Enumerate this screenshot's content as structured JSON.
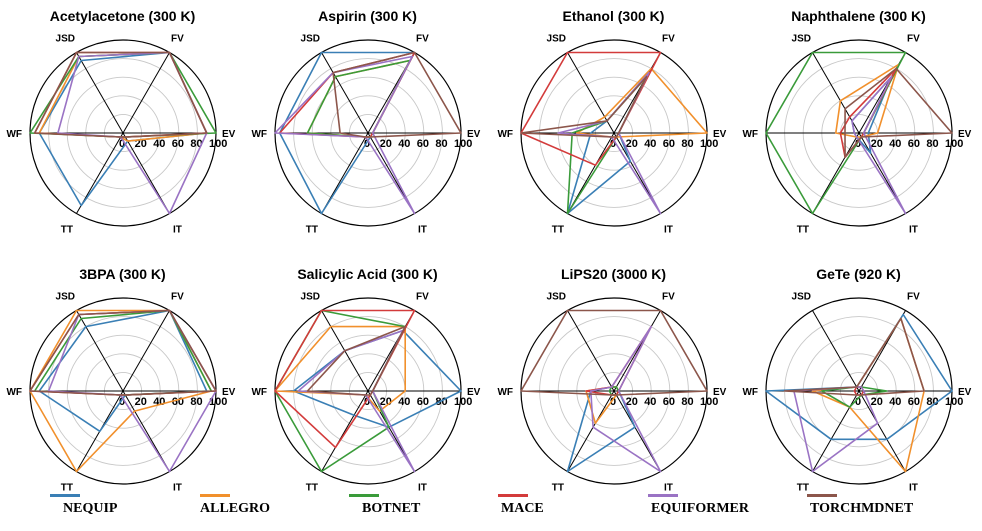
{
  "axes": [
    "EV",
    "IT",
    "TT",
    "WF",
    "JSD",
    "FV"
  ],
  "rticks": [
    "0",
    "20",
    "40",
    "60",
    "80",
    "100"
  ],
  "colors": {
    "NEQUIP": "#3a7fb5",
    "ALLEGRO": "#f1902c",
    "BOTNET": "#3a9b3a",
    "MACE": "#d33b3b",
    "EQUIFORMER": "#9a73c4",
    "TORCHMDNET": "#8c564b"
  },
  "legend": [
    {
      "name": "NEQUIP",
      "color": "#3a7fb5"
    },
    {
      "name": "ALLEGRO",
      "color": "#f1902c"
    },
    {
      "name": "BOTNET",
      "color": "#3a9b3a"
    },
    {
      "name": "MACE",
      "color": "#d33b3b"
    },
    {
      "name": "EQUIFORMER",
      "color": "#9a73c4"
    },
    {
      "name": "TORCHMDNET",
      "color": "#8c564b"
    }
  ],
  "chart_data": [
    {
      "type": "radar",
      "title": "Acetylacetone (300 K)",
      "axes": [
        "EV",
        "IT",
        "TT",
        "WF",
        "JSD",
        "FV"
      ],
      "rlim": [
        0,
        100
      ],
      "series": [
        {
          "name": "NEQUIP",
          "values": [
            90,
            10,
            90,
            90,
            90,
            100
          ]
        },
        {
          "name": "ALLEGRO",
          "values": [
            90,
            10,
            5,
            90,
            95,
            100
          ]
        },
        {
          "name": "BOTNET",
          "values": [
            100,
            5,
            5,
            100,
            95,
            100
          ]
        },
        {
          "name": "MACE",
          "values": [
            90,
            5,
            5,
            95,
            100,
            100
          ]
        },
        {
          "name": "EQUIFORMER",
          "values": [
            90,
            100,
            5,
            70,
            95,
            100
          ]
        },
        {
          "name": "TORCHMDNET",
          "values": [
            90,
            5,
            5,
            95,
            100,
            100
          ]
        }
      ]
    },
    {
      "type": "radar",
      "title": "Aspirin (300 K)",
      "axes": [
        "EV",
        "IT",
        "TT",
        "WF",
        "JSD",
        "FV"
      ],
      "rlim": [
        0,
        100
      ],
      "series": [
        {
          "name": "NEQUIP",
          "values": [
            5,
            5,
            100,
            95,
            100,
            100
          ]
        },
        {
          "name": "ALLEGRO",
          "values": [
            5,
            5,
            5,
            65,
            70,
            90
          ]
        },
        {
          "name": "BOTNET",
          "values": [
            5,
            5,
            5,
            65,
            70,
            90
          ]
        },
        {
          "name": "MACE",
          "values": [
            5,
            5,
            5,
            95,
            75,
            100
          ]
        },
        {
          "name": "EQUIFORMER",
          "values": [
            5,
            100,
            5,
            100,
            75,
            95
          ]
        },
        {
          "name": "TORCHMDNET",
          "values": [
            100,
            5,
            5,
            30,
            75,
            100
          ]
        }
      ]
    },
    {
      "type": "radar",
      "title": "Ethanol (300 K)",
      "axes": [
        "EV",
        "IT",
        "TT",
        "WF",
        "JSD",
        "FV"
      ],
      "rlim": [
        0,
        100
      ],
      "series": [
        {
          "name": "NEQUIP",
          "values": [
            5,
            35,
            100,
            25,
            15,
            75
          ]
        },
        {
          "name": "ALLEGRO",
          "values": [
            100,
            5,
            5,
            40,
            20,
            80
          ]
        },
        {
          "name": "BOTNET",
          "values": [
            5,
            5,
            100,
            45,
            15,
            70
          ]
        },
        {
          "name": "MACE",
          "values": [
            5,
            5,
            40,
            100,
            100,
            100
          ]
        },
        {
          "name": "EQUIFORMER",
          "values": [
            5,
            100,
            5,
            60,
            15,
            75
          ]
        },
        {
          "name": "TORCHMDNET",
          "values": [
            5,
            5,
            5,
            100,
            15,
            70
          ]
        }
      ]
    },
    {
      "type": "radar",
      "title": "Naphthalene (300 K)",
      "axes": [
        "EV",
        "IT",
        "TT",
        "WF",
        "JSD",
        "FV"
      ],
      "rlim": [
        0,
        100
      ],
      "series": [
        {
          "name": "NEQUIP",
          "values": [
            10,
            25,
            5,
            5,
            15,
            70
          ]
        },
        {
          "name": "ALLEGRO",
          "values": [
            20,
            5,
            5,
            25,
            40,
            85
          ]
        },
        {
          "name": "BOTNET",
          "values": [
            5,
            5,
            100,
            100,
            100,
            100
          ]
        },
        {
          "name": "MACE",
          "values": [
            5,
            5,
            30,
            20,
            20,
            80
          ]
        },
        {
          "name": "EQUIFORMER",
          "values": [
            5,
            100,
            5,
            5,
            15,
            70
          ]
        },
        {
          "name": "TORCHMDNET",
          "values": [
            100,
            5,
            30,
            15,
            30,
            80
          ]
        }
      ]
    },
    {
      "type": "radar",
      "title": "3BPA (300 K)",
      "axes": [
        "EV",
        "IT",
        "TT",
        "WF",
        "JSD",
        "FV"
      ],
      "rlim": [
        0,
        100
      ],
      "series": [
        {
          "name": "NEQUIP",
          "values": [
            90,
            5,
            50,
            90,
            80,
            100
          ]
        },
        {
          "name": "ALLEGRO",
          "values": [
            95,
            25,
            100,
            100,
            100,
            100
          ]
        },
        {
          "name": "BOTNET",
          "values": [
            95,
            5,
            5,
            95,
            90,
            100
          ]
        },
        {
          "name": "MACE",
          "values": [
            100,
            5,
            5,
            100,
            95,
            100
          ]
        },
        {
          "name": "EQUIFORMER",
          "values": [
            100,
            100,
            5,
            80,
            95,
            100
          ]
        },
        {
          "name": "TORCHMDNET",
          "values": [
            100,
            5,
            5,
            100,
            95,
            100
          ]
        }
      ]
    },
    {
      "type": "radar",
      "title": "Salicylic Acid (300 K)",
      "axes": [
        "EV",
        "IT",
        "TT",
        "WF",
        "JSD",
        "FV"
      ],
      "rlim": [
        0,
        100
      ],
      "series": [
        {
          "name": "NEQUIP",
          "values": [
            100,
            45,
            30,
            80,
            50,
            75
          ]
        },
        {
          "name": "ALLEGRO",
          "values": [
            40,
            25,
            5,
            100,
            80,
            80
          ]
        },
        {
          "name": "BOTNET",
          "values": [
            5,
            45,
            100,
            100,
            100,
            80
          ]
        },
        {
          "name": "MACE",
          "values": [
            5,
            5,
            70,
            100,
            100,
            100
          ]
        },
        {
          "name": "EQUIFORMER",
          "values": [
            5,
            100,
            5,
            75,
            50,
            75
          ]
        },
        {
          "name": "TORCHMDNET",
          "values": [
            5,
            5,
            5,
            65,
            50,
            80
          ]
        }
      ]
    },
    {
      "type": "radar",
      "title": "LiPS20 (3000 K)",
      "axes": [
        "EV",
        "IT",
        "TT",
        "WF",
        "JSD",
        "FV"
      ],
      "rlim": [
        0,
        100
      ],
      "series": [
        {
          "name": "NEQUIP",
          "values": [
            5,
            45,
            100,
            25,
            5,
            5
          ]
        },
        {
          "name": "ALLEGRO",
          "values": [
            5,
            5,
            40,
            30,
            5,
            5
          ]
        },
        {
          "name": "BOTNET",
          "values": [
            5,
            5,
            5,
            5,
            5,
            5
          ]
        },
        {
          "name": "MACE",
          "values": [
            5,
            5,
            5,
            30,
            5,
            80
          ]
        },
        {
          "name": "EQUIFORMER",
          "values": [
            5,
            100,
            45,
            25,
            5,
            80
          ]
        },
        {
          "name": "TORCHMDNET",
          "values": [
            100,
            5,
            5,
            100,
            100,
            100
          ]
        }
      ]
    },
    {
      "type": "radar",
      "title": "GeTe (920 K)",
      "axes": [
        "EV",
        "IT",
        "TT",
        "WF",
        "JSD",
        "FV"
      ],
      "rlim": [
        0,
        100
      ],
      "series": [
        {
          "name": "NEQUIP",
          "values": [
            100,
            60,
            60,
            100,
            5,
            95
          ]
        },
        {
          "name": "ALLEGRO",
          "values": [
            70,
            100,
            20,
            50,
            5,
            90
          ]
        },
        {
          "name": "BOTNET",
          "values": [
            30,
            5,
            20,
            40,
            5,
            5
          ]
        },
        {
          "name": "MACE",
          "values": [
            5,
            5,
            5,
            5,
            5,
            5
          ]
        },
        {
          "name": "EQUIFORMER",
          "values": [
            5,
            40,
            100,
            70,
            5,
            5
          ]
        },
        {
          "name": "TORCHMDNET",
          "values": [
            70,
            5,
            5,
            80,
            5,
            90
          ]
        }
      ]
    }
  ]
}
